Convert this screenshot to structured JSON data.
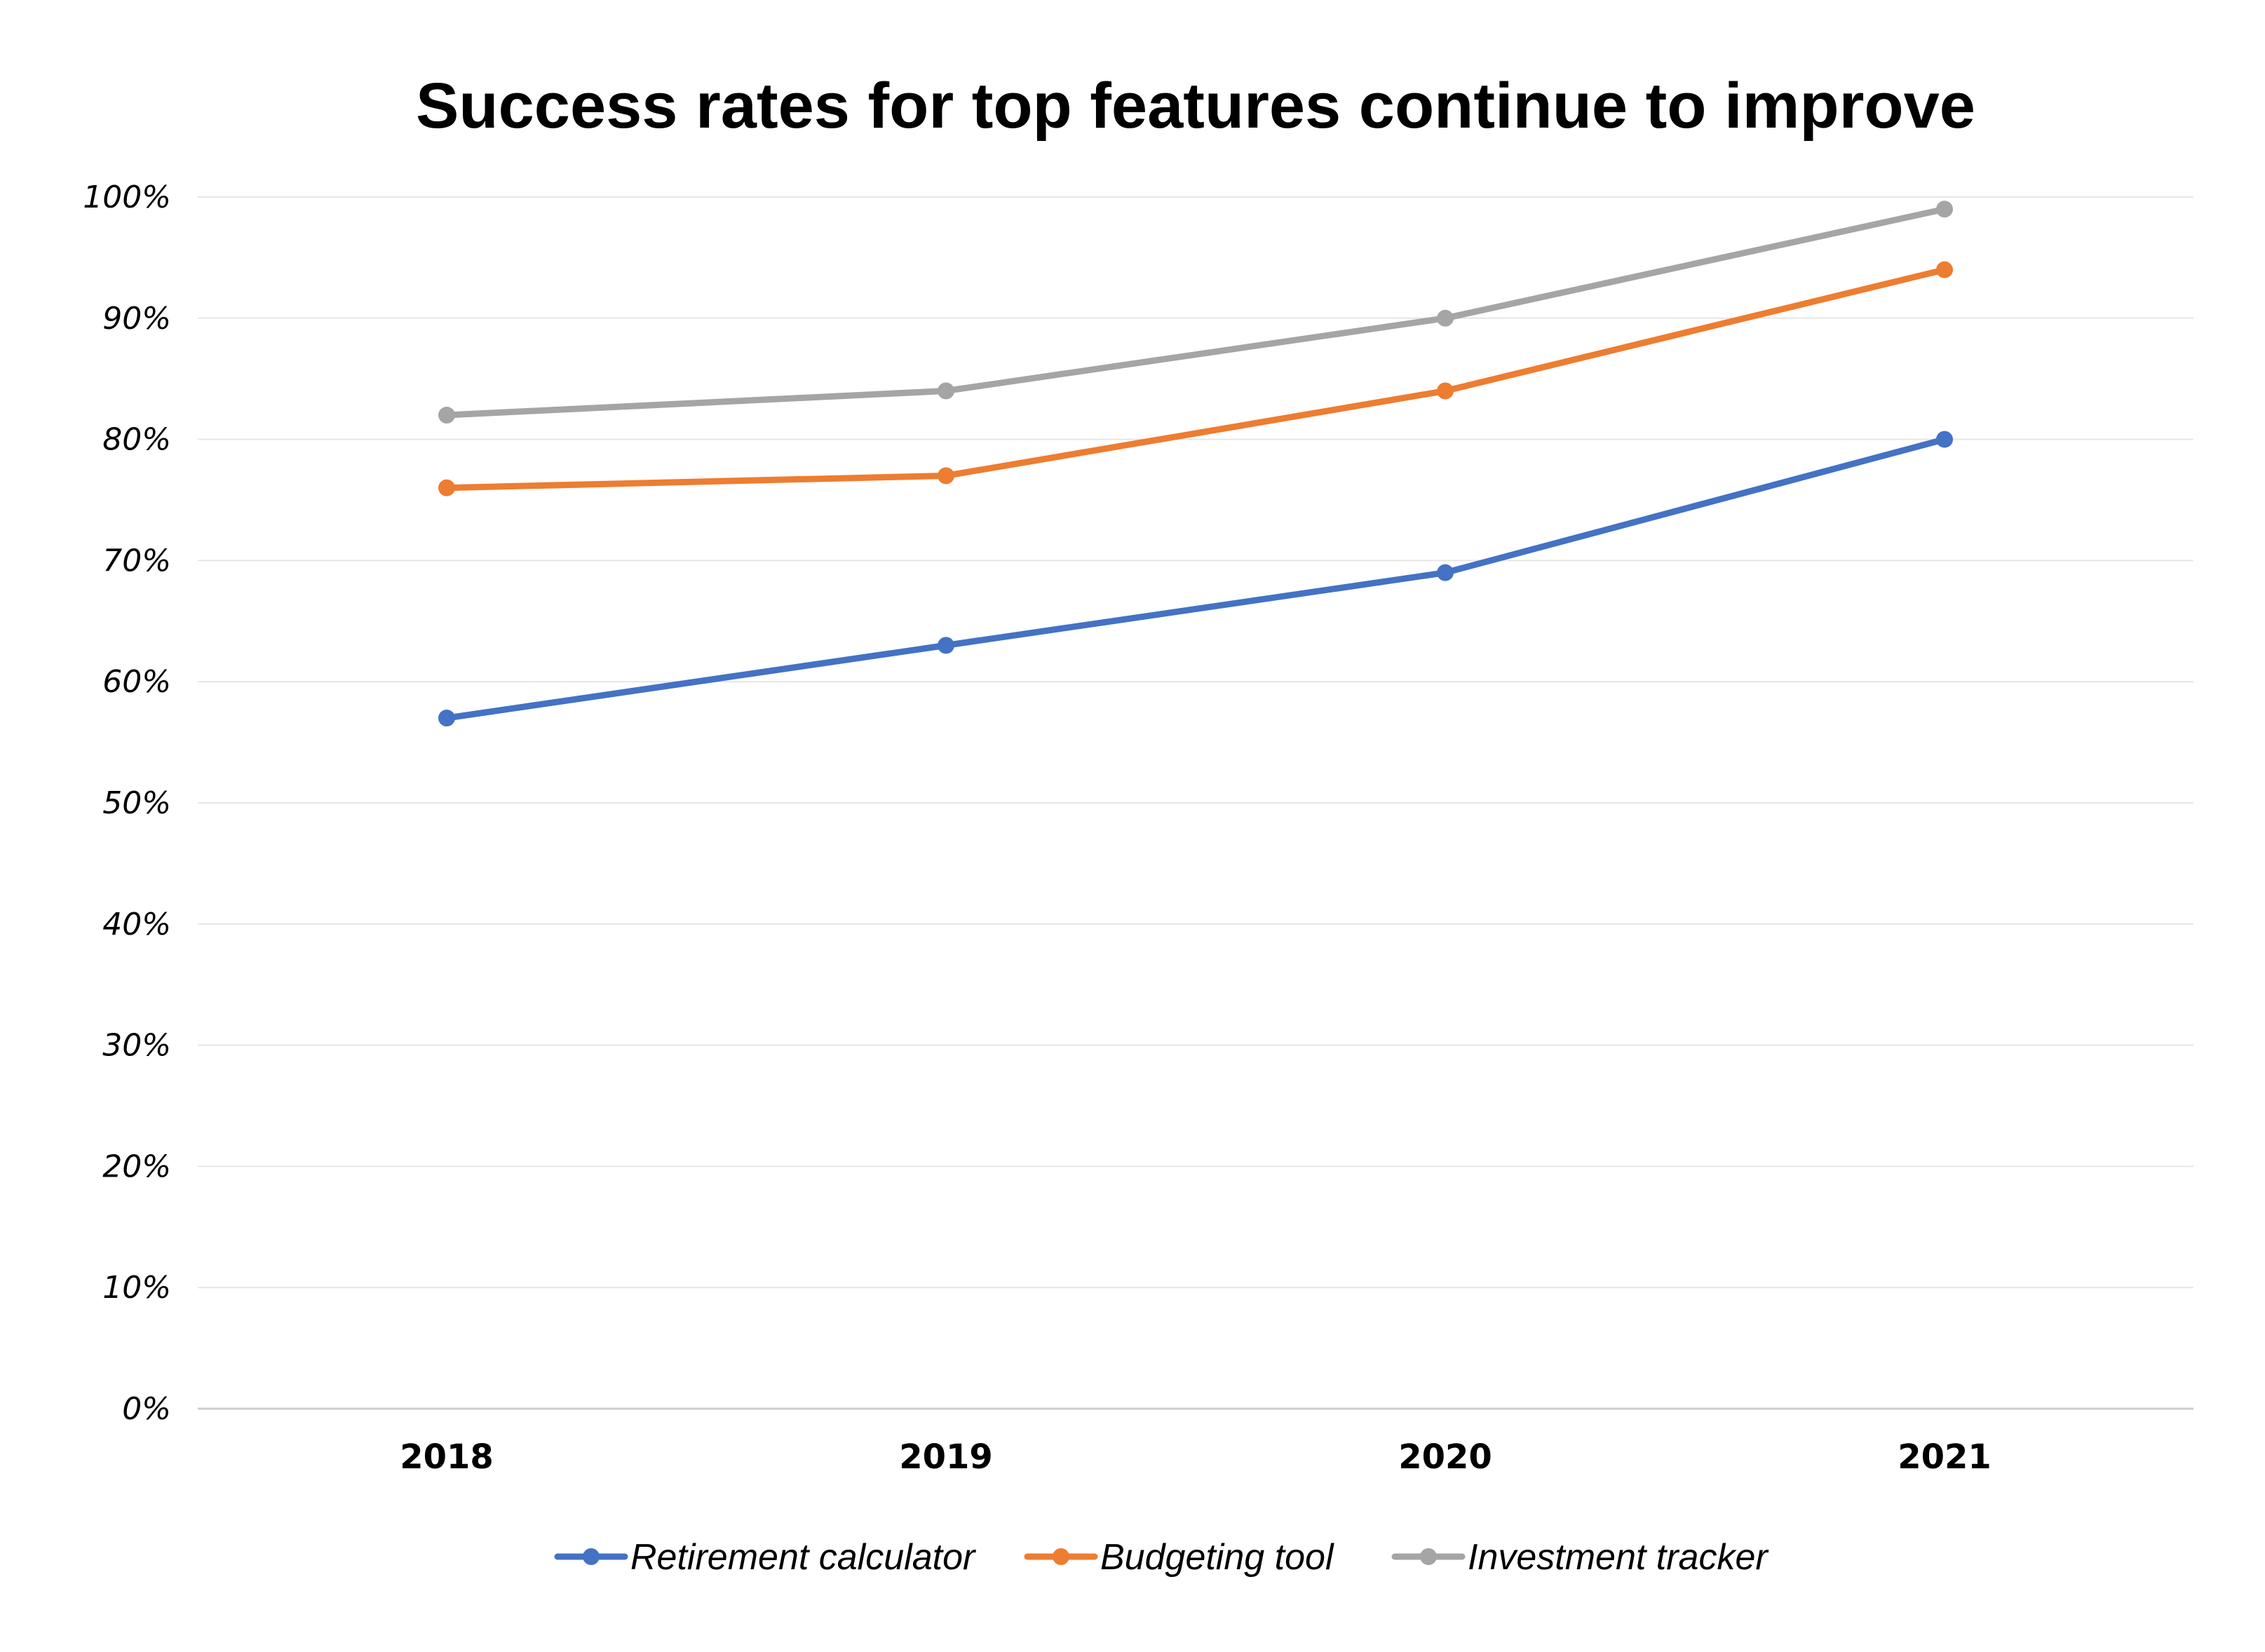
{
  "chart_data": {
    "type": "line",
    "title": "Success rates for top features continue to improve",
    "categories": [
      "2018",
      "2019",
      "2020",
      "2021"
    ],
    "ylim": [
      0,
      100
    ],
    "yticks": [
      "0%",
      "10%",
      "20%",
      "30%",
      "40%",
      "50%",
      "60%",
      "70%",
      "80%",
      "90%",
      "100%"
    ],
    "xlabel": "",
    "ylabel": "",
    "grid": true,
    "legend_position": "bottom",
    "series": [
      {
        "name": "Retirement calculator",
        "color": "#4472c4",
        "values": [
          57,
          63,
          69,
          80
        ]
      },
      {
        "name": "Budgeting tool",
        "color": "#ed7d31",
        "values": [
          76,
          77,
          84,
          94
        ]
      },
      {
        "name": "Investment tracker",
        "color": "#a5a5a5",
        "values": [
          82,
          84,
          90,
          99
        ]
      }
    ]
  }
}
